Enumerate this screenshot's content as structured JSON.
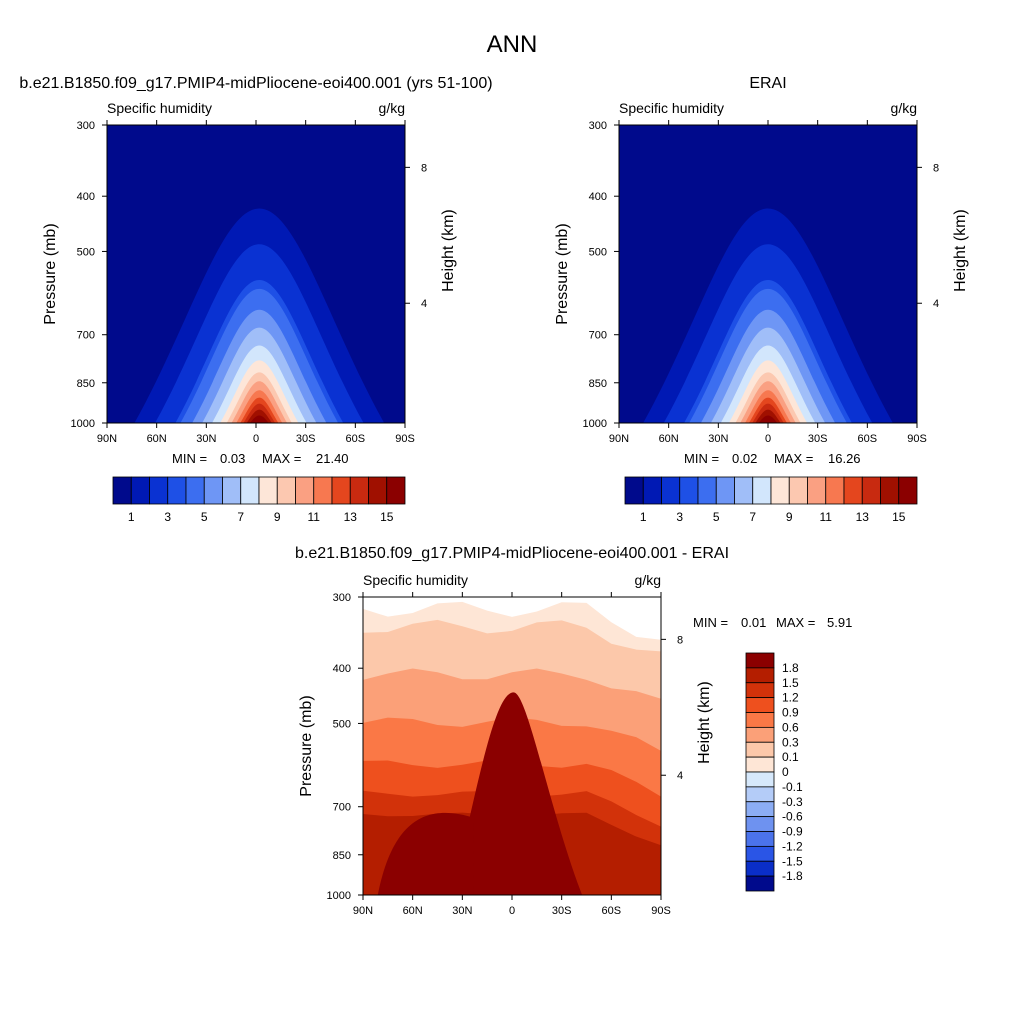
{
  "figure": {
    "main_title": "ANN",
    "left_title": "b.e21.B1850.f09_g17.PMIP4-midPliocene-eoi400.001 (yrs 51-100)",
    "right_title": "ERAI",
    "diff_title": "b.e21.B1850.f09_g17.PMIP4-midPliocene-eoi400.001 - ERAI"
  },
  "chart_data": [
    {
      "type": "contour",
      "panel": "model",
      "title": "b.e21.B1850.f09_g17.PMIP4-midPliocene-eoi400.001 (yrs 51-100)",
      "subtitle_left": "Specific humidity",
      "subtitle_right": "g/kg",
      "ylabel": "Pressure (mb)",
      "ylabel_right": "Height (km)",
      "x_ticks": [
        "90N",
        "60N",
        "30N",
        "0",
        "30S",
        "60S",
        "90S"
      ],
      "y_ticks": [
        "300",
        "400",
        "500",
        "700",
        "850",
        "1000"
      ],
      "y_right_ticks": [
        "8",
        "4"
      ],
      "min_label": "MIN =",
      "min": "0.03",
      "max_label": "MAX =",
      "max": "21.40",
      "x_range": [
        90,
        -90
      ],
      "y_range": [
        1000,
        300
      ],
      "peak_lat": -2,
      "levels": [
        1,
        2,
        3,
        4,
        5,
        6,
        7,
        8,
        9,
        10,
        11,
        12,
        13,
        14,
        15
      ],
      "colorbar_labels": [
        "1",
        "3",
        "5",
        "7",
        "9",
        "11",
        "13",
        "15"
      ]
    },
    {
      "type": "contour",
      "panel": "obs",
      "title": "ERAI",
      "subtitle_left": "Specific humidity",
      "subtitle_right": "g/kg",
      "ylabel": "Pressure (mb)",
      "ylabel_right": "Height (km)",
      "x_ticks": [
        "90N",
        "60N",
        "30N",
        "0",
        "30S",
        "60S",
        "90S"
      ],
      "y_ticks": [
        "300",
        "400",
        "500",
        "700",
        "850",
        "1000"
      ],
      "y_right_ticks": [
        "8",
        "4"
      ],
      "min_label": "MIN =",
      "min": "0.02",
      "max_label": "MAX =",
      "max": "16.26",
      "x_range": [
        90,
        -90
      ],
      "y_range": [
        1000,
        300
      ],
      "peak_lat": 0,
      "levels": [
        1,
        2,
        3,
        4,
        5,
        6,
        7,
        8,
        9,
        10,
        11,
        12,
        13,
        14,
        15
      ],
      "colorbar_labels": [
        "1",
        "3",
        "5",
        "7",
        "9",
        "11",
        "13",
        "15"
      ]
    },
    {
      "type": "contour",
      "panel": "difference",
      "title": "b.e21.B1850.f09_g17.PMIP4-midPliocene-eoi400.001 - ERAI",
      "subtitle_left": "Specific humidity",
      "subtitle_right": "g/kg",
      "ylabel": "Pressure (mb)",
      "ylabel_right": "Height (km)",
      "x_ticks": [
        "90N",
        "60N",
        "30N",
        "0",
        "30S",
        "60S",
        "90S"
      ],
      "y_ticks": [
        "300",
        "400",
        "500",
        "700",
        "850",
        "1000"
      ],
      "y_right_ticks": [
        "8",
        "4"
      ],
      "min_label": "MIN =",
      "min": "0.01",
      "max_label": "MAX =",
      "max": "5.91",
      "x_range": [
        90,
        -90
      ],
      "y_range": [
        1000,
        300
      ],
      "levels": [
        -1.8,
        -1.5,
        -1.2,
        -0.9,
        -0.6,
        -0.3,
        -0.1,
        0,
        0.1,
        0.3,
        0.6,
        0.9,
        1.2,
        1.5,
        1.8
      ],
      "colorbar_labels": [
        "1.8",
        "1.5",
        "1.2",
        "0.9",
        "0.6",
        "0.3",
        "0.1",
        "0",
        "-0.1",
        "-0.3",
        "-0.6",
        "-0.9",
        "-1.2",
        "-1.5",
        "-1.8"
      ]
    }
  ],
  "colors": {
    "abs_palette": [
      "#000a8c",
      "#0019b4",
      "#0a32d2",
      "#1e50e6",
      "#3c6ef0",
      "#6e96f5",
      "#a0bef8",
      "#d2e6fc",
      "#fde6d8",
      "#fcc8b0",
      "#faa082",
      "#f77850",
      "#e4461e",
      "#c82a10",
      "#a01000",
      "#8b0000"
    ],
    "diff_palette": [
      "#8b0000",
      "#b41e00",
      "#d2320a",
      "#ee501e",
      "#fa7846",
      "#fba078",
      "#fcc8aa",
      "#fee6d6",
      "#d6e8fb",
      "#b4ccf8",
      "#8cadf4",
      "#6e92f0",
      "#4b73eb",
      "#2a55e6",
      "#0a2ec8",
      "#000a8c"
    ]
  }
}
